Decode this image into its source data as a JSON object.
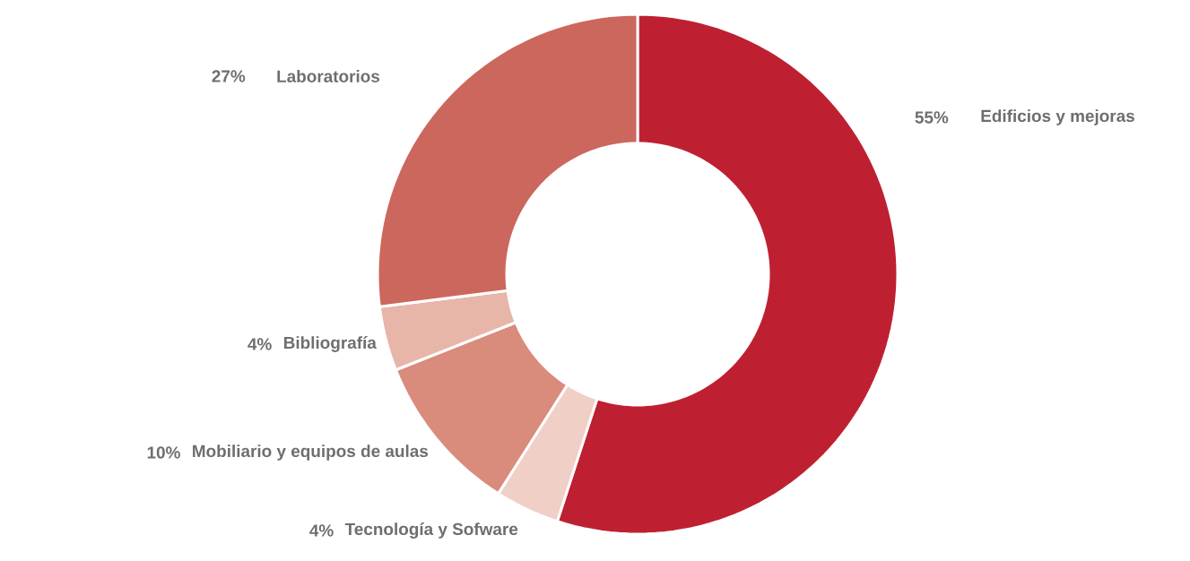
{
  "chart_data": {
    "type": "donut",
    "categories": [
      "Edificios y mejoras",
      "Tecnología y Sofware",
      "Mobiliario y equipos de aulas",
      "Bibliografía",
      "Laboratorios"
    ],
    "values": [
      55,
      4,
      10,
      4,
      27
    ],
    "value_labels": [
      "55%",
      "4%",
      "10%",
      "4%",
      "27%"
    ],
    "colors": [
      "#be2032",
      "#f0cfc6",
      "#d98b7c",
      "#e8b5a9",
      "#cc675e"
    ]
  }
}
